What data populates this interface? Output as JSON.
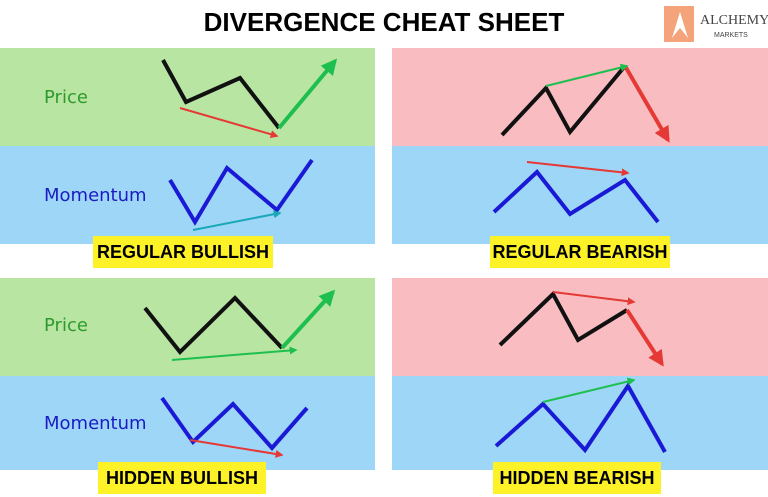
{
  "title": "DIVERGENCE CHEAT SHEET",
  "logo": {
    "name": "ALCHEMY",
    "sub": "MARKETS"
  },
  "panels": [
    {
      "price_label": "Price",
      "momentum_label": "Momentum",
      "badge": "REGULAR BULLISH"
    },
    {
      "badge": "REGULAR BEARISH"
    },
    {
      "price_label": "Price",
      "momentum_label": "Momentum",
      "badge": "HIDDEN BULLISH"
    },
    {
      "badge": "HIDDEN BEARISH"
    }
  ]
}
